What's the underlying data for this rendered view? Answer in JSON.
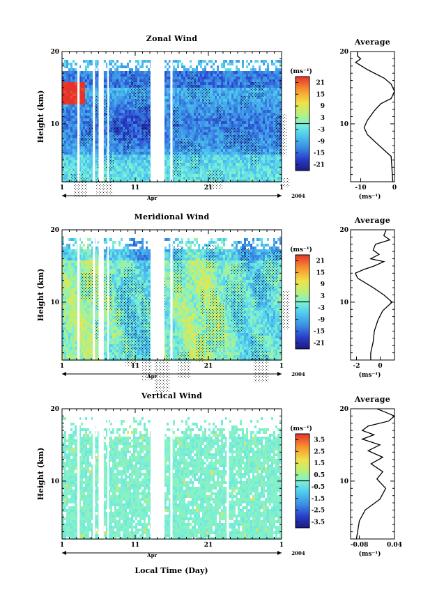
{
  "xlabel": "Local Time (Day)",
  "month_label": "Apr",
  "year_label": "2004",
  "x_ticks": [
    "1",
    "11",
    "21",
    "1"
  ],
  "ylabel": "Height (km)",
  "y_ticks": [
    "20",
    "10"
  ],
  "unit": "(ms⁻¹)",
  "avg_title": "Average",
  "panels": [
    {
      "title": "Zonal Wind",
      "colorbar_labels": [
        "21",
        "15",
        "9",
        "3",
        "-3",
        "-9",
        "-15",
        "-21"
      ],
      "avg_xticks": [
        "-10",
        "0"
      ]
    },
    {
      "title": "Meridional Wind",
      "colorbar_labels": [
        "21",
        "15",
        "9",
        "3",
        "-3",
        "-9",
        "-15",
        "-21"
      ],
      "avg_xticks": [
        "-2",
        "0"
      ]
    },
    {
      "title": "Vertical Wind",
      "colorbar_labels": [
        "3.5",
        "2.5",
        "1.5",
        "0.5",
        "-0.5",
        "-1.5",
        "-2.5",
        "-3.5"
      ],
      "avg_xticks": [
        "-0.08",
        "0.04"
      ]
    }
  ],
  "chart_data": [
    {
      "type": "heatmap",
      "title": "Zonal Wind",
      "xlabel": "",
      "ylabel": "Height (km)",
      "xlim_days": [
        1,
        31
      ],
      "ylim_km": [
        2,
        20
      ],
      "colorbar": {
        "range": [
          -24,
          24
        ],
        "ticks": [
          21,
          15,
          9,
          3,
          -3,
          -9,
          -15,
          -21
        ],
        "unit": "ms-1"
      },
      "data_gaps_day": [
        [
          3.1,
          3.4
        ],
        [
          5.2,
          5.5
        ],
        [
          6.0,
          6.7
        ],
        [
          7.2,
          7.4
        ],
        [
          13.1,
          15.0
        ],
        [
          15.8,
          16.1
        ]
      ]
    },
    {
      "type": "line",
      "title": "Average",
      "series": [
        {
          "x": [
            -11,
            -11,
            -10,
            -11.5,
            -8,
            -3,
            -1,
            0,
            -1,
            -4,
            -6,
            -8,
            -9,
            -8,
            -5,
            -1,
            -0.5
          ],
          "y": [
            20,
            19.4,
            19,
            18.5,
            17.5,
            16.3,
            15.5,
            14.5,
            13.5,
            12.8,
            11.8,
            10.5,
            9.5,
            8.5,
            7.2,
            5.5,
            2
          ]
        }
      ],
      "xlim": [
        -13,
        0
      ],
      "ylim": [
        2,
        20
      ]
    },
    {
      "type": "heatmap",
      "title": "Meridional Wind",
      "xlabel": "",
      "ylabel": "Height (km)",
      "xlim_days": [
        1,
        31
      ],
      "ylim_km": [
        2,
        20
      ],
      "colorbar": {
        "range": [
          -24,
          24
        ],
        "ticks": [
          21,
          15,
          9,
          3,
          -3,
          -9,
          -15,
          -21
        ],
        "unit": "ms-1"
      },
      "data_gaps_day": [
        [
          3.1,
          3.4
        ],
        [
          5.2,
          5.5
        ],
        [
          6.0,
          6.7
        ],
        [
          7.2,
          7.4
        ],
        [
          13.1,
          15.0
        ],
        [
          15.8,
          16.1
        ]
      ]
    },
    {
      "type": "line",
      "title": "Average",
      "series": [
        {
          "x": [
            0.5,
            0.3,
            0.8,
            -0.4,
            -0.6,
            -0.1,
            -0.8,
            0.3,
            -0.5,
            -1.4,
            -2.1,
            -1.9,
            -0.6,
            0.3,
            1,
            0.2,
            -0.2,
            -0.5,
            -0.6,
            -0.8,
            -0.8
          ],
          "y": [
            20,
            19.2,
            18.6,
            18,
            17.2,
            16.6,
            16,
            15.6,
            15,
            14.5,
            14,
            13.3,
            12,
            11,
            10,
            8.8,
            7.5,
            6,
            4.5,
            3,
            2
          ]
        }
      ],
      "xlim": [
        -2.5,
        1.2
      ],
      "ylim": [
        2,
        20
      ]
    },
    {
      "type": "heatmap",
      "title": "Vertical Wind",
      "xlabel": "Local Time (Day)",
      "ylabel": "Height (km)",
      "xlim_days": [
        1,
        31
      ],
      "ylim_km": [
        2,
        20
      ],
      "colorbar": {
        "range": [
          -4,
          4
        ],
        "ticks": [
          3.5,
          2.5,
          1.5,
          0.5,
          -0.5,
          -1.5,
          -2.5,
          -3.5
        ],
        "unit": "ms-1"
      },
      "data_gaps_day": [
        [
          3.1,
          3.4
        ],
        [
          5.2,
          5.5
        ],
        [
          6.0,
          6.7
        ],
        [
          7.2,
          7.4
        ],
        [
          13.1,
          15.0
        ],
        [
          15.8,
          16.1
        ],
        [
          23.5,
          23.8
        ]
      ]
    },
    {
      "type": "line",
      "title": "Average",
      "series": [
        {
          "x": [
            -0.02,
            0.01,
            0.04,
            0.02,
            -0.05,
            -0.07,
            -0.03,
            -0.07,
            -0.01,
            -0.05,
            0.0,
            -0.04,
            0.0,
            -0.02,
            0.01,
            -0.01,
            -0.06,
            -0.08,
            -0.09
          ],
          "y": [
            20,
            19.5,
            19.0,
            18.3,
            17.6,
            17.0,
            16.4,
            15.8,
            15.0,
            14.2,
            13.3,
            12.4,
            11.3,
            10.3,
            9.0,
            7.5,
            6.0,
            4.5,
            2
          ]
        }
      ],
      "xlim": [
        -0.11,
        0.04
      ],
      "ylim": [
        2,
        20
      ]
    }
  ]
}
